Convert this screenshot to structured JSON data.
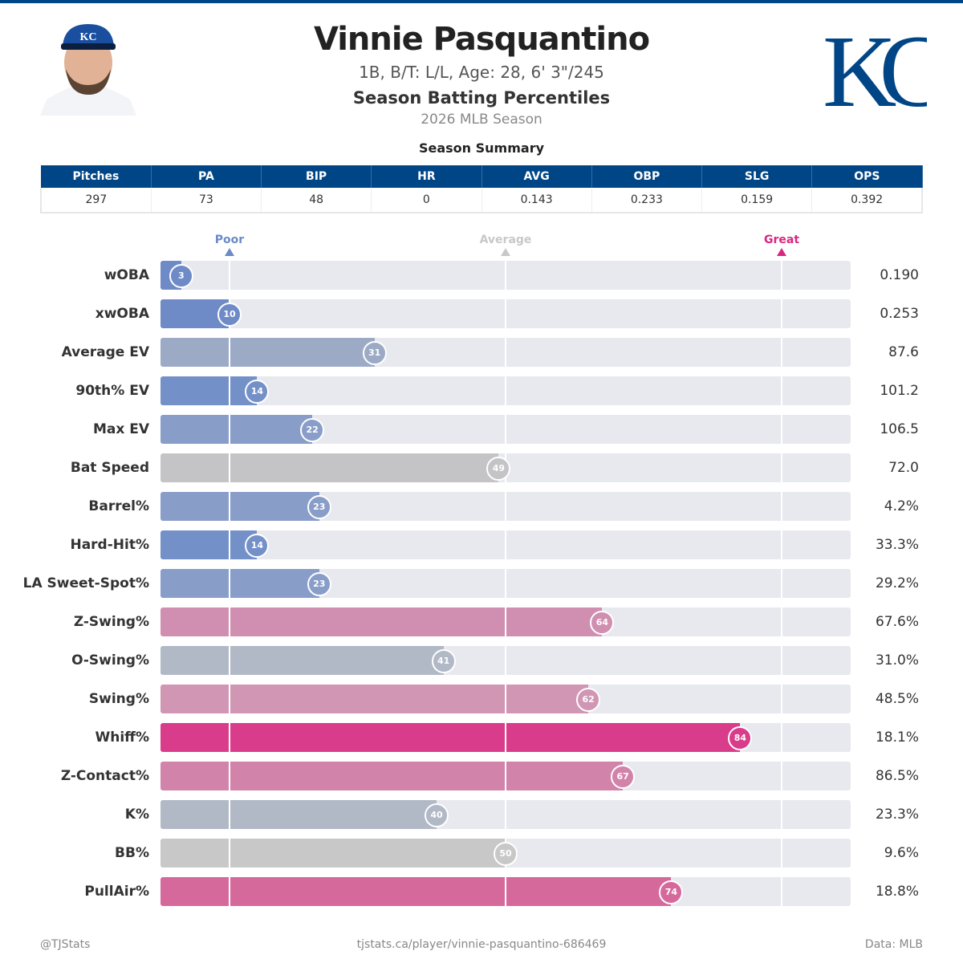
{
  "header": {
    "name": "Vinnie Pasquantino",
    "bio": "1B, B/T: L/L, Age: 28, 6' 3\"/245",
    "subtitle": "Season Batting Percentiles",
    "season": "2026 MLB Season",
    "logo_text": "KC",
    "brand_color": "#004687"
  },
  "summary": {
    "title": "Season Summary",
    "headers": [
      "Pitches",
      "PA",
      "BIP",
      "HR",
      "AVG",
      "OBP",
      "SLG",
      "OPS"
    ],
    "values": [
      "297",
      "73",
      "48",
      "0",
      "0.143",
      "0.233",
      "0.159",
      "0.392"
    ]
  },
  "chart_data": {
    "type": "bar",
    "orientation": "horizontal",
    "xlim": [
      0,
      100
    ],
    "markers": [
      {
        "label": "Poor",
        "at": 10,
        "color": "#6b8ac7"
      },
      {
        "label": "Average",
        "at": 50,
        "color": "#c8c8c8"
      },
      {
        "label": "Great",
        "at": 90,
        "color": "#d8277f"
      }
    ],
    "categories": [
      "wOBA",
      "xwOBA",
      "Average EV",
      "90th% EV",
      "Max EV",
      "Bat Speed",
      "Barrel%",
      "Hard-Hit%",
      "LA Sweet-Spot%",
      "Z-Swing%",
      "O-Swing%",
      "Swing%",
      "Whiff%",
      "Z-Contact%",
      "K%",
      "BB%",
      "PullAir%"
    ],
    "percentiles": [
      3,
      10,
      31,
      14,
      22,
      49,
      23,
      14,
      23,
      64,
      41,
      62,
      84,
      67,
      40,
      50,
      74
    ],
    "values": [
      "0.190",
      "0.253",
      "87.6",
      "101.2",
      "106.5",
      "72.0",
      "4.2%",
      "33.3%",
      "29.2%",
      "67.6%",
      "31.0%",
      "48.5%",
      "18.1%",
      "86.5%",
      "23.3%",
      "9.6%",
      "18.8%"
    ],
    "colors": [
      "#6e8bc7",
      "#6e8bc7",
      "#9caac6",
      "#7490c8",
      "#899dc9",
      "#c4c4c6",
      "#899dc9",
      "#7490c8",
      "#899dc9",
      "#d08fb0",
      "#b1b8c6",
      "#d096b3",
      "#d83c8a",
      "#d183aa",
      "#b1b8c6",
      "#c8c8c8",
      "#d6699c"
    ]
  },
  "footer": {
    "left": "@TJStats",
    "center": "tjstats.ca/player/vinnie-pasquantino-686469",
    "right": "Data: MLB"
  }
}
